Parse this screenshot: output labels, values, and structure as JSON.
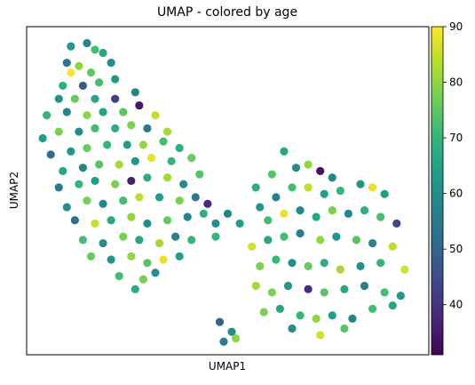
{
  "chart_data": {
    "type": "scatter",
    "title": "UMAP - colored by age",
    "x_label": "UMAP1",
    "y_label": "UMAP2",
    "xlim": [
      0,
      100
    ],
    "ylim": [
      0,
      100
    ],
    "colormap": "viridis",
    "clim": [
      31,
      90
    ],
    "cticks": [
      40,
      50,
      60,
      70,
      80,
      90
    ],
    "x": [
      11,
      15,
      17,
      10,
      13,
      19,
      21,
      11,
      16,
      9,
      14,
      18,
      22,
      8,
      12,
      17,
      22,
      27,
      5,
      10,
      15,
      19,
      24,
      28,
      32,
      4,
      8,
      13,
      17,
      22,
      26,
      30,
      35,
      6,
      11,
      15,
      20,
      25,
      29,
      34,
      38,
      9,
      14,
      18,
      23,
      27,
      31,
      36,
      41,
      8,
      13,
      17,
      22,
      26,
      30,
      35,
      39,
      43,
      10,
      15,
      19,
      24,
      28,
      33,
      38,
      42,
      45,
      12,
      17,
      21,
      26,
      30,
      35,
      40,
      44,
      14,
      19,
      24,
      28,
      33,
      37,
      41,
      16,
      21,
      26,
      30,
      34,
      38,
      23,
      29,
      32,
      27,
      47,
      50,
      53,
      47,
      57,
      61,
      64,
      67,
      70,
      73,
      76,
      66,
      62,
      58,
      70,
      74,
      78,
      83,
      86,
      89,
      60,
      64,
      68,
      72,
      76,
      80,
      84,
      88,
      92,
      56,
      60,
      64,
      68,
      73,
      77,
      82,
      86,
      91,
      58,
      62,
      66,
      70,
      74,
      78,
      83,
      88,
      94,
      57,
      61,
      65,
      70,
      74,
      79,
      84,
      89,
      93,
      59,
      63,
      68,
      72,
      76,
      81,
      86,
      91,
      66,
      73,
      79,
      48,
      51,
      49,
      52
    ],
    "y": [
      94,
      95,
      93,
      89,
      88,
      92,
      89,
      86,
      86,
      82,
      82,
      83,
      84,
      78,
      78,
      78,
      78,
      80,
      73,
      74,
      73,
      74,
      74,
      76,
      73,
      66,
      68,
      68,
      69,
      69,
      70,
      69,
      68,
      61,
      62,
      63,
      64,
      64,
      64,
      65,
      63,
      56,
      57,
      58,
      58,
      59,
      60,
      59,
      60,
      51,
      52,
      53,
      52,
      53,
      54,
      54,
      52,
      55,
      45,
      47,
      46,
      47,
      48,
      48,
      47,
      48,
      46,
      41,
      40,
      41,
      42,
      40,
      41,
      42,
      43,
      35,
      34,
      36,
      35,
      34,
      36,
      35,
      30,
      29,
      30,
      28,
      29,
      30,
      24,
      23,
      25,
      20,
      40,
      43,
      40,
      36,
      51,
      55,
      62,
      57,
      58,
      56,
      54,
      51,
      48,
      45,
      51,
      49,
      50,
      52,
      51,
      49,
      41,
      43,
      44,
      42,
      44,
      43,
      44,
      42,
      40,
      33,
      35,
      36,
      37,
      35,
      36,
      35,
      34,
      33,
      27,
      29,
      28,
      27,
      28,
      26,
      27,
      28,
      26,
      21,
      19,
      21,
      20,
      19,
      20,
      21,
      19,
      18,
      13,
      14,
      12,
      11,
      12,
      11,
      14,
      15,
      8,
      6,
      8,
      10,
      7,
      4,
      5
    ],
    "values": [
      62,
      58,
      72,
      55,
      80,
      66,
      60,
      90,
      75,
      68,
      48,
      72,
      63,
      61,
      76,
      66,
      42,
      58,
      70,
      58,
      80,
      65,
      75,
      35,
      85,
      64,
      78,
      60,
      72,
      68,
      78,
      55,
      82,
      52,
      62,
      76,
      70,
      64,
      80,
      72,
      68,
      66,
      58,
      74,
      82,
      62,
      88,
      70,
      76,
      55,
      70,
      64,
      78,
      36,
      68,
      82,
      60,
      74,
      60,
      78,
      58,
      72,
      84,
      64,
      78,
      55,
      38,
      52,
      85,
      66,
      80,
      60,
      76,
      58,
      68,
      72,
      60,
      78,
      66,
      82,
      56,
      70,
      76,
      62,
      80,
      74,
      88,
      64,
      72,
      78,
      60,
      68,
      60,
      58,
      64,
      70,
      68,
      74,
      66,
      60,
      80,
      34,
      58,
      72,
      56,
      62,
      84,
      64,
      70,
      62,
      88,
      64,
      72,
      88,
      58,
      66,
      78,
      58,
      68,
      72,
      44,
      86,
      66,
      72,
      56,
      80,
      62,
      74,
      58,
      84,
      78,
      70,
      60,
      76,
      68,
      82,
      60,
      70,
      86,
      82,
      78,
      62,
      38,
      74,
      66,
      56,
      72,
      62,
      78,
      66,
      70,
      80,
      64,
      58,
      72,
      66,
      60,
      86,
      74,
      50,
      60,
      56,
      80
    ]
  }
}
